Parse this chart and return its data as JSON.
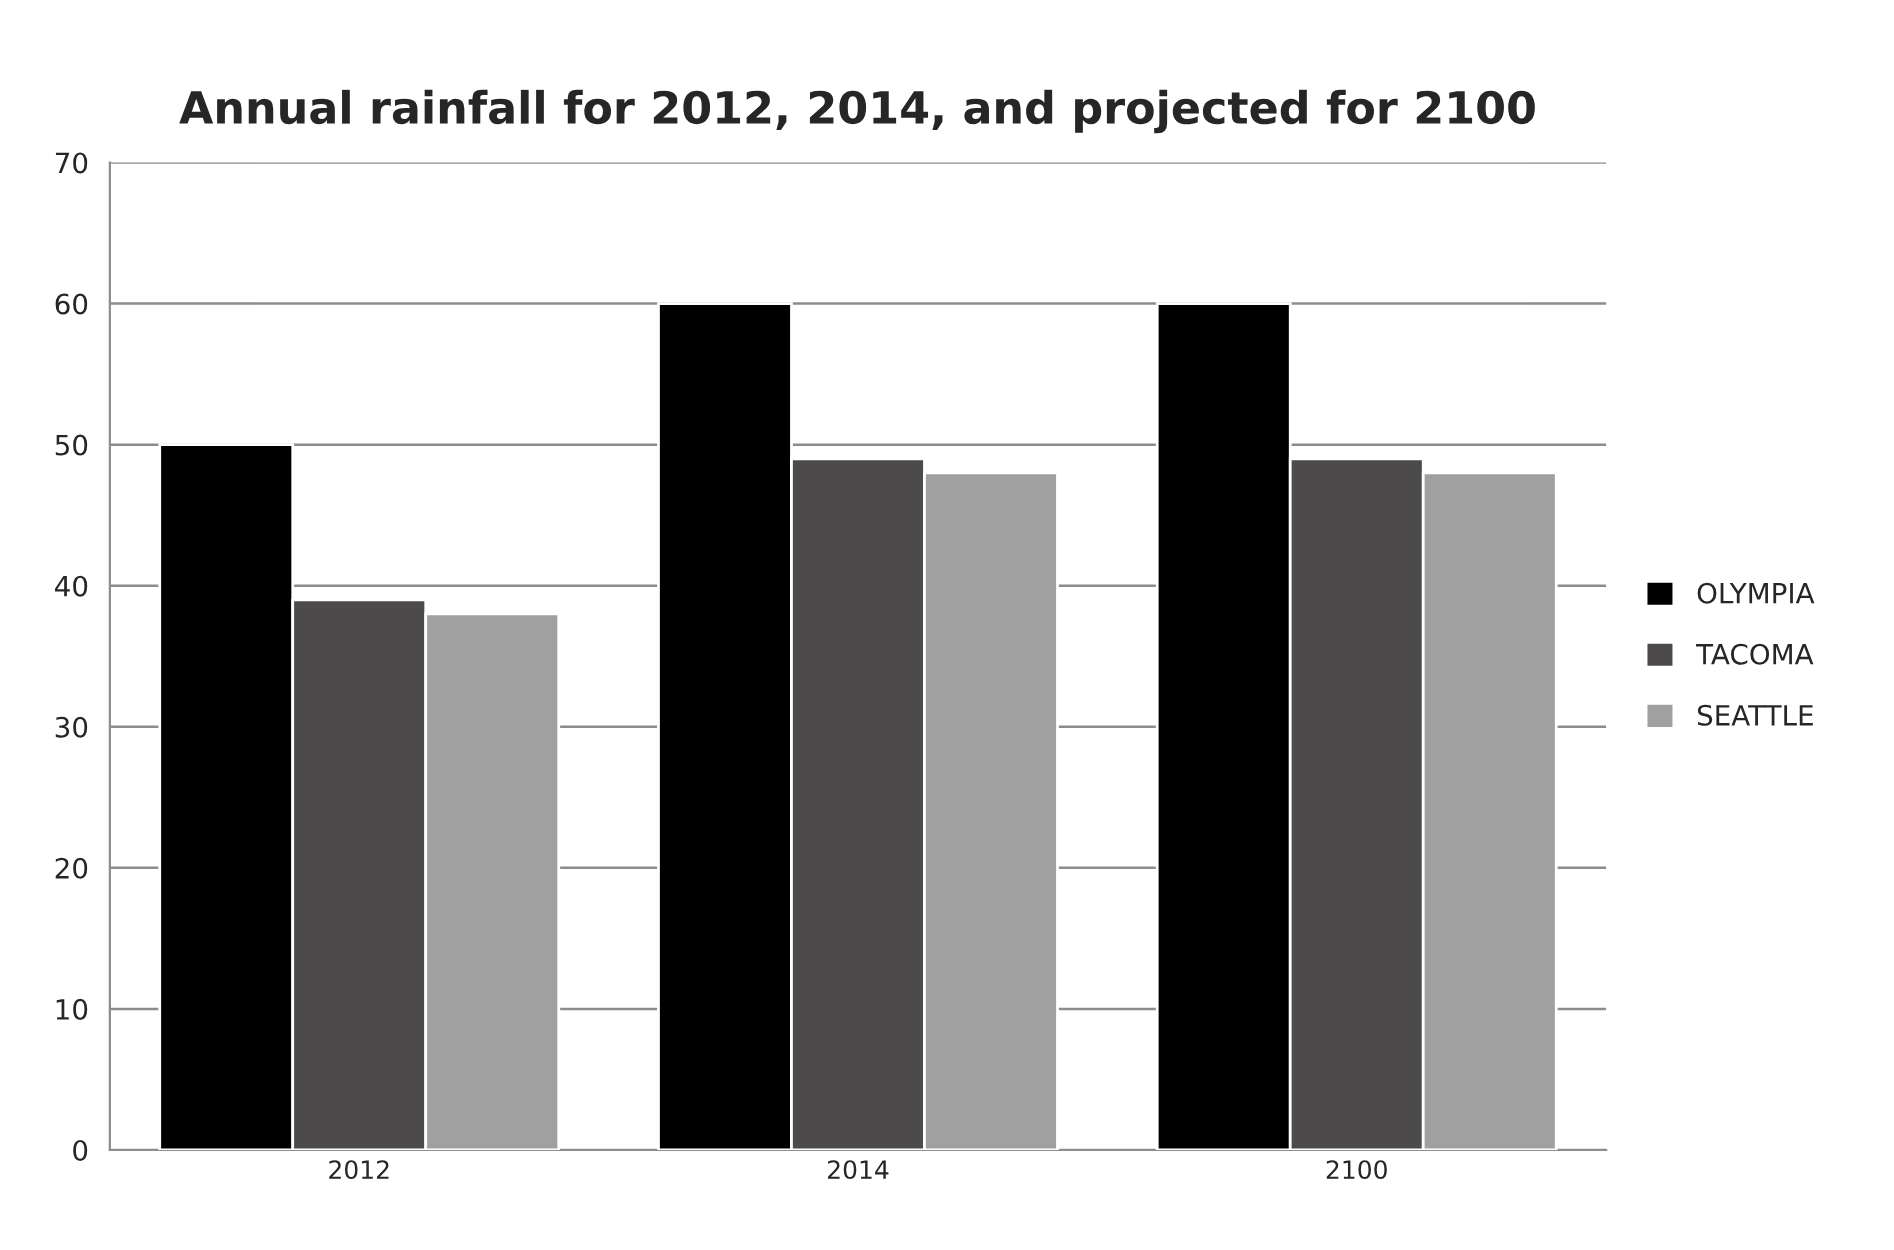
{
  "chart_data": {
    "type": "bar",
    "title": "Annual rainfall for 2012, 2014, and projected for 2100",
    "categories": [
      "2012",
      "2014",
      "2100"
    ],
    "series": [
      {
        "name": "OLYMPIA",
        "color": "#000000",
        "values": [
          50,
          60,
          60
        ]
      },
      {
        "name": "TACOMA",
        "color": "#4d4a4b",
        "values": [
          39,
          49,
          49
        ]
      },
      {
        "name": "SEATTLE",
        "color": "#a0a0a0",
        "values": [
          38,
          48,
          48
        ]
      }
    ],
    "ylim": [
      0,
      70
    ],
    "yticks": [
      0,
      10,
      20,
      30,
      40,
      50,
      60,
      70
    ],
    "grid": "y",
    "legend": "right"
  }
}
